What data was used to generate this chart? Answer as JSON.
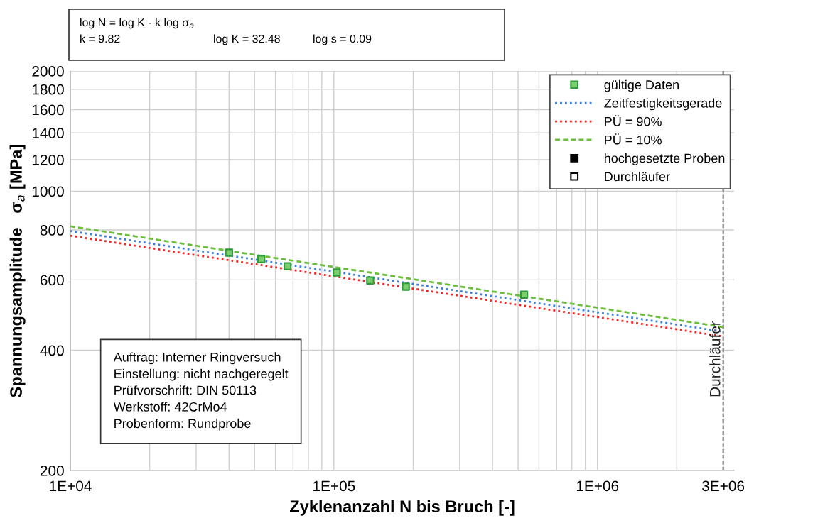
{
  "chart_data": {
    "type": "scatter",
    "xlabel": "Zyklenanzahl N bis Bruch [-]",
    "ylabel": "Spannungsamplitude   σ$_{a}$ [MPa]",
    "log": "xy",
    "xlim": [
      10000,
      3300000
    ],
    "ylim": [
      200,
      2000
    ],
    "xticks": [
      {
        "value": 10000,
        "label": "1E+04"
      },
      {
        "value": 20000,
        "label": null
      },
      {
        "value": 30000,
        "label": null
      },
      {
        "value": 40000,
        "label": null
      },
      {
        "value": 50000,
        "label": null
      },
      {
        "value": 60000,
        "label": null
      },
      {
        "value": 70000,
        "label": null
      },
      {
        "value": 80000,
        "label": null
      },
      {
        "value": 90000,
        "label": null
      },
      {
        "value": 100000,
        "label": "1E+05"
      },
      {
        "value": 200000,
        "label": null
      },
      {
        "value": 300000,
        "label": null
      },
      {
        "value": 400000,
        "label": null
      },
      {
        "value": 500000,
        "label": null
      },
      {
        "value": 600000,
        "label": null
      },
      {
        "value": 700000,
        "label": null
      },
      {
        "value": 800000,
        "label": null
      },
      {
        "value": 900000,
        "label": null
      },
      {
        "value": 1000000,
        "label": "1E+06"
      },
      {
        "value": 2000000,
        "label": null
      },
      {
        "value": 3000000,
        "label": "3E+06"
      }
    ],
    "yticks": [
      200,
      400,
      600,
      800,
      1000,
      1200,
      1400,
      1600,
      1800,
      2000
    ],
    "grid": true,
    "legend": "top right",
    "series": [
      {
        "name": "gültige Daten",
        "marker": "square",
        "color": "#7ccf6e",
        "x": [
          40000,
          53000,
          66700,
          102500,
          137300,
          187500,
          527000
        ],
        "values": [
          702,
          676,
          649,
          626,
          598,
          577,
          551
        ]
      },
      {
        "name": "Zeitfestigkeitsgerade",
        "type": "line",
        "marker": "none",
        "line_style": "dotted",
        "color": "#3a7fe0",
        "x": [
          10000,
          3000000
        ],
        "values": [
          795,
          445
        ]
      },
      {
        "name": "PÜ = 90%",
        "type": "line",
        "marker": "none",
        "line_style": "dotted",
        "color": "#ff2020",
        "x": [
          10000,
          3000000
        ],
        "values": [
          774,
          433
        ]
      },
      {
        "name": "PÜ = 10%",
        "type": "line",
        "marker": "none",
        "line_style": "dashed",
        "color": "#6abf3a",
        "x": [
          10000,
          3000000
        ],
        "values": [
          817,
          457
        ]
      },
      {
        "name": "hochgesetzte Proben",
        "type": "scatter",
        "marker": "square",
        "color": "#000000"
      },
      {
        "name": "Durchläufer",
        "type": "scatter",
        "marker": "square",
        "color": "#ffffff"
      }
    ],
    "ref_lines": [
      {
        "axis": "x",
        "value": 3000000,
        "label": "Durchläufer",
        "color": "#707070",
        "line_style": "dashed"
      }
    ],
    "annotations": [
      "log N = log K - k log σ$_{a}$",
      "k = 9.82",
      "log K = 32.48",
      "log s = 0.09",
      "Auftrag: Interner Ringversuch\nEinstellung: nicht nachgeregelt\nPrüfvorschrift: DIN 50113\nWerkstoff: 42CrMo4\nProbenform: Rundprobe"
    ]
  }
}
